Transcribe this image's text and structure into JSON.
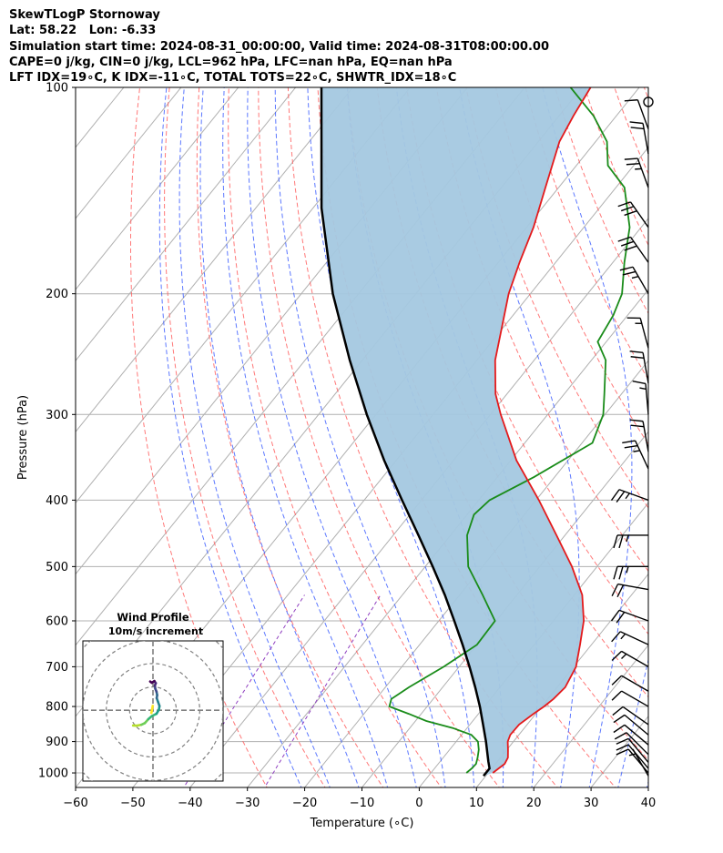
{
  "header": {
    "line1": "SkewTLogP Stornoway",
    "line2": "Lat: 58.22   Lon: -6.33",
    "line3": "Simulation start time: 2024-08-31_00:00:00, Valid time: 2024-08-31T08:00:00.00",
    "line4": "CAPE=0 j/kg, CIN=0 j/kg, LCL=962 hPa, LFC=nan hPa, EQ=nan hPa",
    "line5": "LFT IDX=19∘C, K IDX=-11∘C, TOTAL TOTS=22∘C, SHWTR_IDX=18∘C"
  },
  "colors": {
    "temperature": "#e41a1c",
    "dewpoint": "#1a8c1a",
    "parcel": "#000000",
    "cape_fill": "#a4c8e0",
    "dry_adiabats": "#ff6060",
    "moist_adiabats": "#4060ff",
    "mixing_ratio": "#9040c0",
    "isotherms": "#b0b0b0"
  },
  "chart_data": [
    {
      "type": "line",
      "subtype": "skew-t log-p",
      "xlabel": "Temperature (∘C)",
      "ylabel": "Pressure (hPa)",
      "xlim": [
        -60,
        40
      ],
      "ylim": [
        1050,
        100
      ],
      "y_scale": "log",
      "xticks": [
        -60,
        -50,
        -40,
        -30,
        -20,
        -10,
        0,
        10,
        20,
        30,
        40
      ],
      "yticks": [
        100,
        200,
        300,
        400,
        500,
        600,
        700,
        800,
        900,
        1000
      ],
      "grid": true,
      "series": [
        {
          "role": "temperature",
          "points": [
            [
              1000,
              10.8
            ],
            [
              970,
              11.6
            ],
            [
              950,
              11.3
            ],
            [
              925,
              10.2
            ],
            [
              900,
              9.0
            ],
            [
              880,
              8.5
            ],
            [
              850,
              8.6
            ],
            [
              820,
              9.6
            ],
            [
              800,
              10.4
            ],
            [
              780,
              11.0
            ],
            [
              750,
              11.4
            ],
            [
              700,
              10.4
            ],
            [
              650,
              8.0
            ],
            [
              600,
              5.3
            ],
            [
              550,
              1.4
            ],
            [
              500,
              -4.4
            ],
            [
              450,
              -11.5
            ],
            [
              400,
              -19.5
            ],
            [
              350,
              -29.0
            ],
            [
              300,
              -38.2
            ],
            [
              280,
              -42.0
            ],
            [
              250,
              -46.8
            ],
            [
              220,
              -50.8
            ],
            [
              200,
              -53.8
            ],
            [
              180,
              -56.3
            ],
            [
              160,
              -58.8
            ],
            [
              140,
              -62.3
            ],
            [
              120,
              -66.3
            ],
            [
              110,
              -67.5
            ],
            [
              100,
              -68.5
            ]
          ]
        },
        {
          "role": "dewpoint",
          "points": [
            [
              1000,
              6.2
            ],
            [
              985,
              6.5
            ],
            [
              970,
              6.6
            ],
            [
              950,
              6.0
            ],
            [
              925,
              5.1
            ],
            [
              900,
              3.8
            ],
            [
              880,
              1.7
            ],
            [
              860,
              -2.5
            ],
            [
              840,
              -8.1
            ],
            [
              820,
              -12.2
            ],
            [
              800,
              -16.6
            ],
            [
              780,
              -17.3
            ],
            [
              750,
              -15.9
            ],
            [
              700,
              -12.7
            ],
            [
              650,
              -10.0
            ],
            [
              600,
              -10.2
            ],
            [
              550,
              -16.0
            ],
            [
              500,
              -22.5
            ],
            [
              450,
              -27.1
            ],
            [
              420,
              -28.8
            ],
            [
              400,
              -28.1
            ],
            [
              370,
              -23.6
            ],
            [
              330,
              -18.2
            ],
            [
              300,
              -20.3
            ],
            [
              280,
              -23.0
            ],
            [
              250,
              -27.5
            ],
            [
              235,
              -31.5
            ],
            [
              215,
              -32.5
            ],
            [
              200,
              -34.0
            ],
            [
              180,
              -38.0
            ],
            [
              160,
              -42.0
            ],
            [
              140,
              -48.5
            ],
            [
              130,
              -54.5
            ],
            [
              120,
              -58.0
            ],
            [
              110,
              -64.0
            ],
            [
              100,
              -72.0
            ]
          ]
        },
        {
          "role": "parcel",
          "points": [
            [
              1010,
              9.6
            ],
            [
              985,
              9.6
            ],
            [
              962,
              8.4
            ],
            [
              900,
              5.2
            ],
            [
              850,
              2.3
            ],
            [
              800,
              -0.8
            ],
            [
              750,
              -4.3
            ],
            [
              700,
              -8.2
            ],
            [
              650,
              -12.5
            ],
            [
              600,
              -17.3
            ],
            [
              550,
              -22.6
            ],
            [
              500,
              -28.7
            ],
            [
              450,
              -35.6
            ],
            [
              400,
              -43.4
            ],
            [
              350,
              -52.1
            ],
            [
              300,
              -61.6
            ],
            [
              250,
              -72.2
            ],
            [
              200,
              -84.5
            ],
            [
              150,
              -98.5
            ],
            [
              100,
              -115.5
            ]
          ]
        }
      ],
      "annotations": [
        "shaded area between temperature and parcel profiles"
      ]
    },
    {
      "type": "line",
      "subtype": "hodograph",
      "title": "Wind Profile",
      "subtitle": "10m/s increment",
      "points": [
        [
          -8.5,
          -6.5
        ],
        [
          -7,
          -6.6
        ],
        [
          -5,
          -6.2
        ],
        [
          -3.5,
          -5.5
        ],
        [
          -2,
          -3.8
        ],
        [
          -0.5,
          -2.5
        ],
        [
          1.5,
          -1.5
        ],
        [
          2.5,
          0.2
        ],
        [
          2.8,
          1.8
        ],
        [
          2.2,
          3.5
        ],
        [
          1.6,
          5.2
        ],
        [
          1.8,
          6.5
        ],
        [
          1.5,
          8.0
        ],
        [
          1.0,
          9.2
        ],
        [
          0.8,
          10.6
        ],
        [
          1.2,
          11.6
        ],
        [
          0.6,
          12.5
        ],
        [
          -0.5,
          11.8
        ],
        [
          -1.2,
          12.3
        ]
      ]
    },
    {
      "type": "scatter",
      "subtype": "wind barbs",
      "values_note": "pressure hPa, speed kt, direction deg",
      "points": [
        [
          1010,
          5,
          330
        ],
        [
          1000,
          8,
          320
        ],
        [
          985,
          10,
          320
        ],
        [
          965,
          12,
          320
        ],
        [
          940,
          12,
          315
        ],
        [
          910,
          10,
          310
        ],
        [
          880,
          10,
          310
        ],
        [
          850,
          10,
          305
        ],
        [
          800,
          10,
          300
        ],
        [
          760,
          12,
          300
        ],
        [
          700,
          15,
          300
        ],
        [
          650,
          15,
          295
        ],
        [
          600,
          20,
          290
        ],
        [
          540,
          20,
          280
        ],
        [
          500,
          25,
          270
        ],
        [
          450,
          25,
          270
        ],
        [
          400,
          25,
          290
        ],
        [
          360,
          25,
          335
        ],
        [
          340,
          20,
          350
        ],
        [
          300,
          15,
          355
        ],
        [
          270,
          20,
          350
        ],
        [
          240,
          15,
          345
        ],
        [
          200,
          25,
          330
        ],
        [
          180,
          30,
          325
        ],
        [
          160,
          30,
          325
        ],
        [
          140,
          25,
          340
        ],
        [
          125,
          20,
          350
        ],
        [
          115,
          10,
          340
        ],
        [
          105,
          0,
          0
        ]
      ]
    }
  ]
}
